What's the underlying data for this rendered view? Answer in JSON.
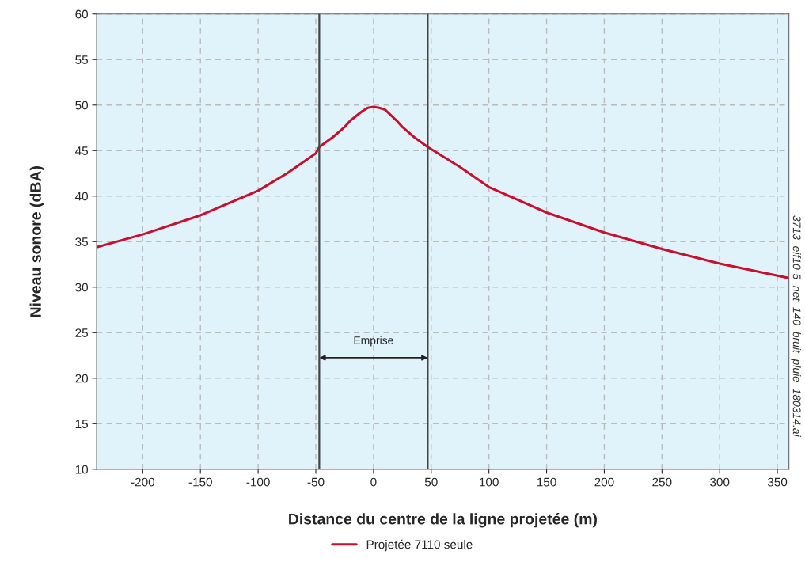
{
  "chart_data": {
    "type": "line",
    "xlabel": "Distance du centre de la ligne projetée (m)",
    "ylabel": "Niveau sonore (dBA)",
    "x": [
      -240,
      -200,
      -150,
      -100,
      -75,
      -50,
      -47,
      -35,
      -25,
      -20,
      -15,
      -10,
      -5,
      0,
      5,
      10,
      20,
      25,
      35,
      47,
      75,
      100,
      150,
      200,
      250,
      300,
      360
    ],
    "series": [
      {
        "name": "Projetée 7110 seule",
        "color": "#c8102e",
        "values": [
          34.4,
          35.8,
          37.9,
          40.6,
          42.5,
          44.7,
          45.4,
          46.5,
          47.6,
          48.3,
          48.8,
          49.3,
          49.7,
          49.8,
          49.7,
          49.5,
          48.3,
          47.6,
          46.5,
          45.4,
          43.2,
          41.0,
          38.2,
          36.0,
          34.2,
          32.6,
          31.0
        ]
      }
    ],
    "xlim": [
      -240,
      360
    ],
    "xticks": [
      -200,
      -150,
      -100,
      -50,
      0,
      50,
      100,
      150,
      200,
      250,
      300,
      350
    ],
    "ylim": [
      10,
      60
    ],
    "yticks": [
      10,
      15,
      20,
      25,
      30,
      35,
      40,
      45,
      50,
      55,
      60
    ],
    "ref_lines": [
      {
        "axis": "x",
        "value": -47,
        "color": "#444444"
      },
      {
        "axis": "x",
        "value": 47,
        "color": "#444444"
      }
    ],
    "annotations": [
      "Emprise",
      "3713_eif10-5_net_140_bruit_pluie_180314.ai"
    ],
    "grid": true,
    "legend": "bottom",
    "marker": "none",
    "line_style": "solid"
  }
}
